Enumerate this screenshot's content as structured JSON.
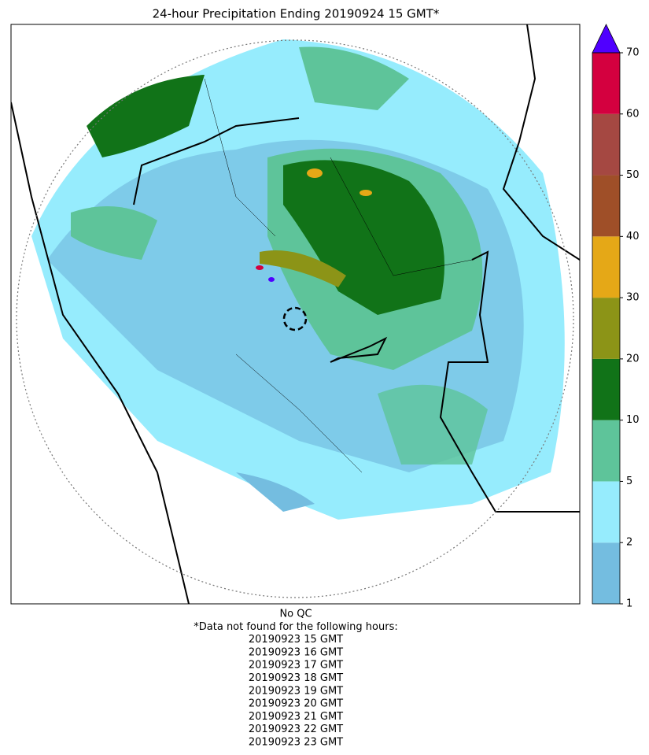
{
  "title": "24-hour Precipitation Ending 20190924 15 GMT*",
  "colorbar": {
    "ticks": [
      1,
      2,
      5,
      10,
      20,
      30,
      40,
      50,
      60,
      70
    ],
    "colors": [
      "#74bde0",
      "#96ecfd",
      "#5ec49a",
      "#117318",
      "#8c9417",
      "#e5a817",
      "#9f4f28",
      "#a54842",
      "#d4003f"
    ],
    "extend_color": "#5000ff"
  },
  "footer": {
    "qc": "No QC",
    "note": "*Data not found for the following hours:",
    "hours": [
      "20190923 15 GMT",
      "20190923 16 GMT",
      "20190923 17 GMT",
      "20190923 18 GMT",
      "20190923 19 GMT",
      "20190923 20 GMT",
      "20190923 21 GMT",
      "20190923 22 GMT",
      "20190923 23 GMT"
    ]
  }
}
